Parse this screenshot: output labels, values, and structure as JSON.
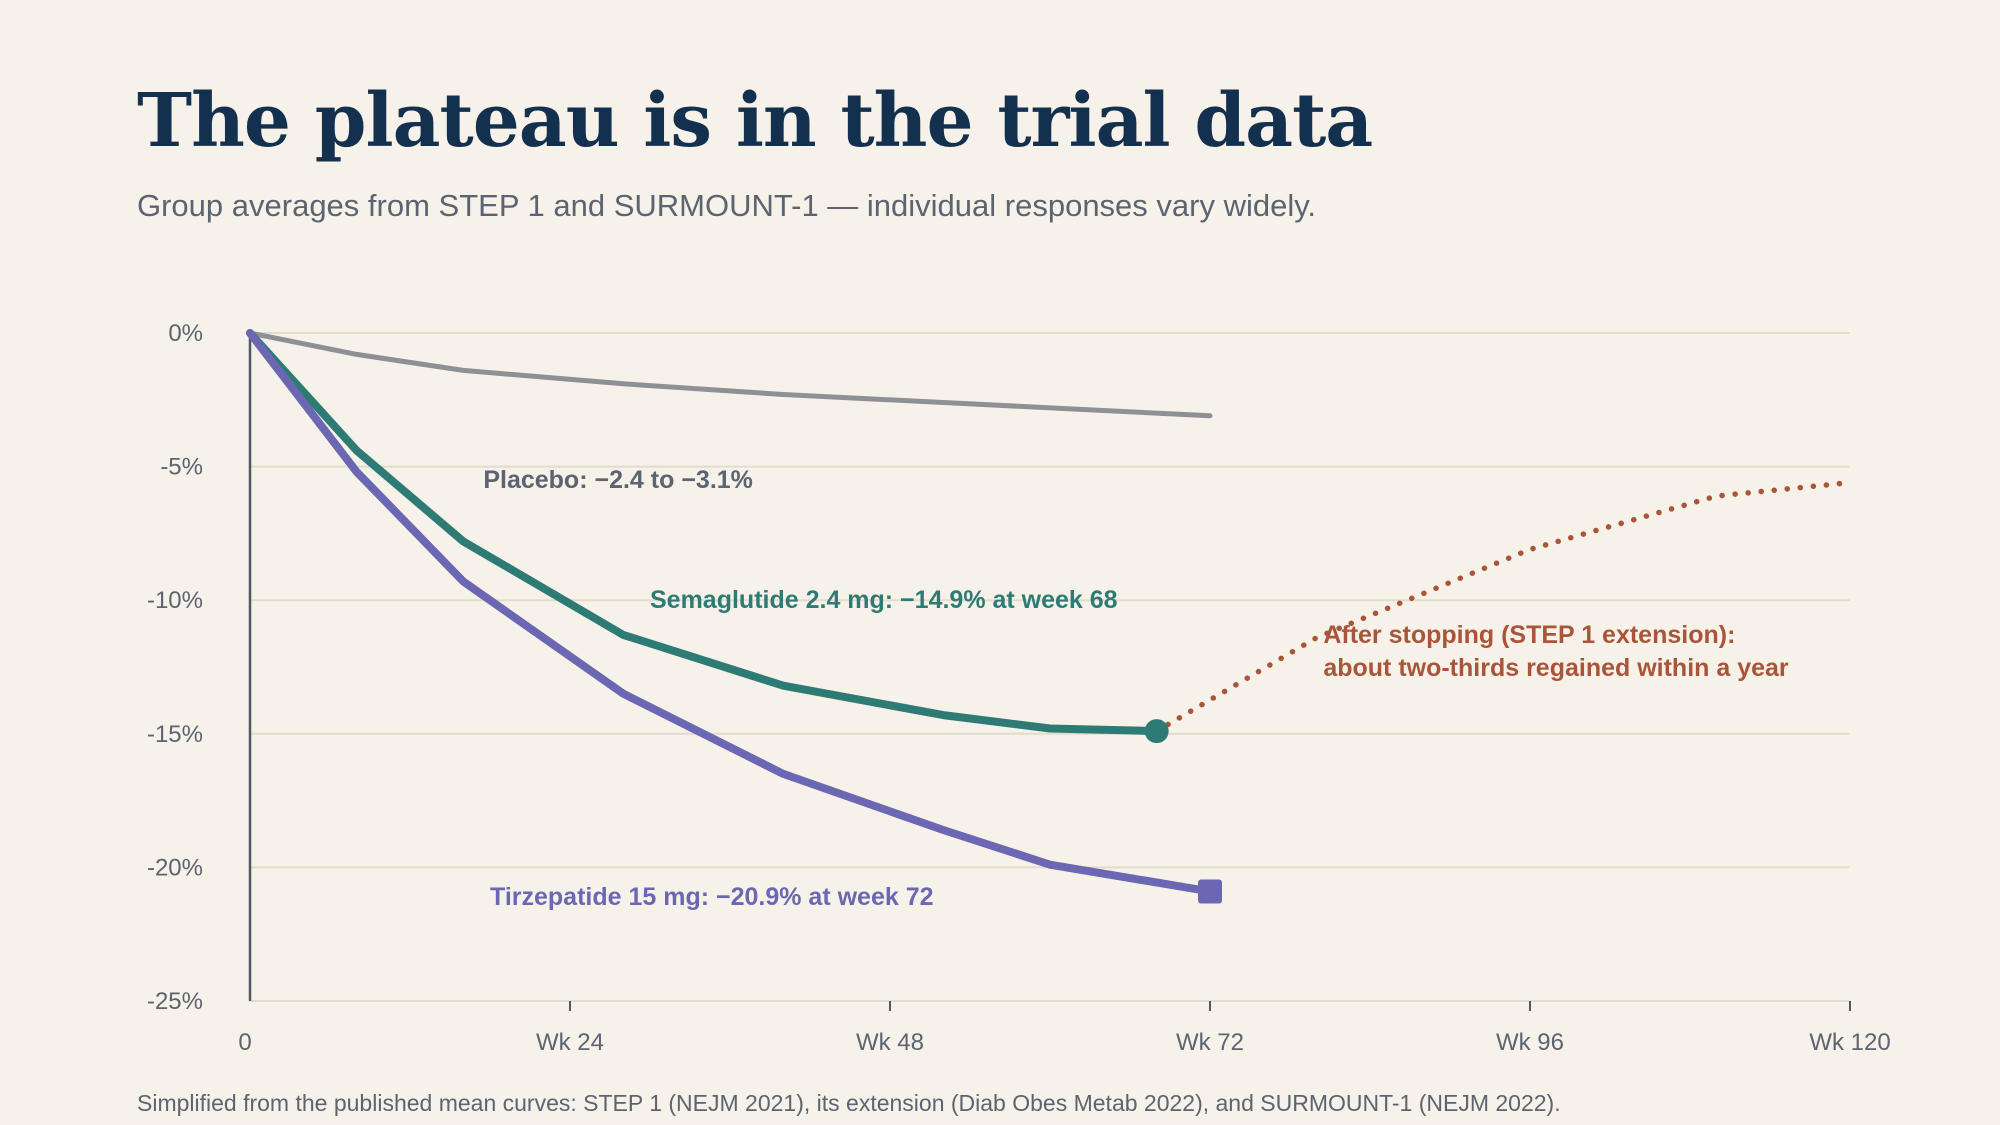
{
  "header": {
    "title": "The plateau is in the trial data",
    "subtitle": "Group averages from STEP 1 and SURMOUNT-1 — individual responses vary widely."
  },
  "footnote": "Simplified from the published mean curves: STEP 1 (NEJM 2021), its extension (Diab Obes Metab 2022), and SURMOUNT-1 (NEJM 2022).",
  "chart_data": {
    "type": "line",
    "title": "The plateau is in the trial data",
    "subtitle": "Group averages from STEP 1 and SURMOUNT-1 — individual responses vary widely.",
    "xlabel": "",
    "ylabel": "",
    "xlim": [
      0,
      120
    ],
    "ylim": [
      -25,
      0
    ],
    "grid": true,
    "x_ticks": [
      {
        "value": 0,
        "label": "0"
      },
      {
        "value": 24,
        "label": "Wk 24"
      },
      {
        "value": 48,
        "label": "Wk 48"
      },
      {
        "value": 72,
        "label": "Wk 72"
      },
      {
        "value": 96,
        "label": "Wk 96"
      },
      {
        "value": 120,
        "label": "Wk 120"
      }
    ],
    "y_ticks": [
      {
        "value": 0,
        "label": "0%"
      },
      {
        "value": -5,
        "label": "-5%"
      },
      {
        "value": -10,
        "label": "-10%"
      },
      {
        "value": -15,
        "label": "-15%"
      },
      {
        "value": -20,
        "label": "-20%"
      },
      {
        "value": -25,
        "label": "-25%"
      }
    ],
    "series": [
      {
        "key": "placebo",
        "color": "#8d9095",
        "style": "solid",
        "points": [
          [
            0,
            0
          ],
          [
            8,
            -0.8
          ],
          [
            16,
            -1.4
          ],
          [
            28,
            -1.9
          ],
          [
            40,
            -2.3
          ],
          [
            52,
            -2.6
          ],
          [
            64,
            -2.9
          ],
          [
            72,
            -3.1
          ]
        ]
      },
      {
        "key": "semaglutide",
        "color": "#2e7b76",
        "style": "solid",
        "marker": "circle",
        "points": [
          [
            0,
            0
          ],
          [
            8,
            -4.4
          ],
          [
            16,
            -7.8
          ],
          [
            28,
            -11.3
          ],
          [
            40,
            -13.2
          ],
          [
            52,
            -14.3
          ],
          [
            60,
            -14.8
          ],
          [
            68,
            -14.9
          ]
        ]
      },
      {
        "key": "tirzepatide",
        "color": "#6b67b3",
        "style": "solid",
        "marker": "square",
        "points": [
          [
            0,
            0
          ],
          [
            8,
            -5.2
          ],
          [
            16,
            -9.3
          ],
          [
            28,
            -13.5
          ],
          [
            40,
            -16.5
          ],
          [
            52,
            -18.6
          ],
          [
            60,
            -19.9
          ],
          [
            72,
            -20.9
          ]
        ]
      },
      {
        "key": "off-treatment",
        "color": "#a9553a",
        "style": "dotted",
        "points": [
          [
            68,
            -14.9
          ],
          [
            80,
            -11.4
          ],
          [
            96,
            -8.1
          ],
          [
            110,
            -6.1
          ],
          [
            120,
            -5.6
          ]
        ]
      }
    ],
    "annotations": [
      {
        "key": "placebo-label",
        "lines": [
          "Placebo: −2.4 to −3.1%"
        ],
        "x": 17.5,
        "y": -5.8,
        "color": "#5b6470"
      },
      {
        "key": "semaglutide-label",
        "lines": [
          "Semaglutide 2.4 mg: −14.9% at week 68"
        ],
        "x": 30,
        "y": -10.3,
        "color": "#2e7b76"
      },
      {
        "key": "tirzepatide-label",
        "lines": [
          "Tirzepatide 15 mg: −20.9% at week 72"
        ],
        "x": 18,
        "y": -21.4,
        "color": "#6b67b3"
      },
      {
        "key": "extension-label",
        "lines": [
          "After stopping (STEP 1 extension):",
          "about two-thirds regained within a year"
        ],
        "x": 80.5,
        "y": -11.6,
        "color": "#a9553a"
      }
    ]
  }
}
